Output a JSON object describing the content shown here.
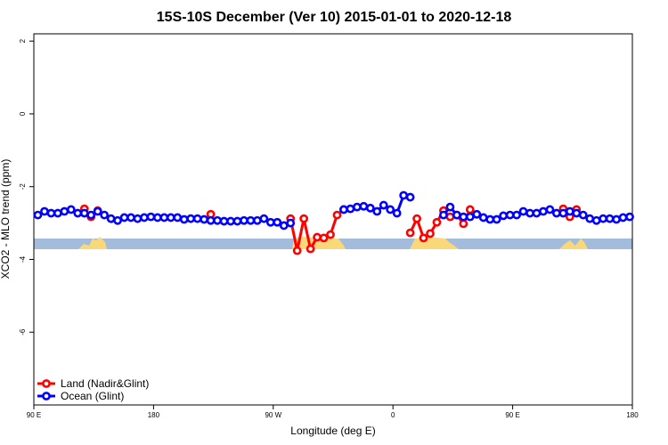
{
  "chart_data": {
    "type": "line",
    "title": "15S-10S December (Ver 10)   2015-01-01 to 2020-12-18",
    "x_label": "Longitude (deg E)",
    "y_label": "XCO2 - MLO trend (ppm)",
    "x": [
      93,
      98,
      103,
      108,
      113,
      118,
      123,
      128,
      133,
      138,
      143,
      148,
      153,
      158,
      163,
      168,
      173,
      178,
      183,
      188,
      193,
      198,
      203,
      208,
      213,
      218,
      223,
      228,
      233,
      238,
      243,
      248,
      253,
      258,
      263,
      268,
      273,
      278,
      283,
      288,
      293,
      298,
      303,
      308,
      313,
      318,
      323,
      328,
      333,
      338,
      343,
      348,
      353,
      358,
      363,
      368,
      373,
      378,
      383,
      388,
      393,
      398,
      403,
      408,
      413,
      418,
      423,
      428,
      433,
      438,
      443,
      448,
      453,
      458,
      463,
      468,
      473,
      478,
      483,
      488,
      493,
      498,
      503,
      508,
      513,
      518,
      523,
      528,
      533,
      538
    ],
    "series": [
      {
        "name": "Land (Nadir&Glint)",
        "color": "#ff0000",
        "values": [
          null,
          null,
          null,
          null,
          null,
          null,
          null,
          -2.61,
          -2.83,
          -2.66,
          null,
          null,
          null,
          null,
          null,
          null,
          null,
          null,
          null,
          null,
          null,
          null,
          null,
          null,
          null,
          null,
          -2.76,
          null,
          null,
          null,
          null,
          null,
          null,
          null,
          null,
          null,
          null,
          null,
          -2.88,
          -3.76,
          -2.88,
          -3.71,
          -3.39,
          -3.41,
          -3.32,
          -2.78,
          -2.63,
          null,
          null,
          null,
          null,
          null,
          null,
          null,
          null,
          null,
          -3.27,
          -2.88,
          -3.41,
          -3.29,
          -2.98,
          -2.66,
          -2.83,
          -2.78,
          -3.02,
          -2.63,
          null,
          null,
          null,
          null,
          null,
          null,
          null,
          null,
          null,
          null,
          null,
          null,
          null,
          -2.61,
          -2.83,
          -2.63,
          null,
          null,
          null,
          null,
          null,
          null,
          null,
          null
        ]
      },
      {
        "name": "Ocean (Glint)",
        "color": "#0000ff",
        "values": [
          -2.78,
          -2.68,
          -2.73,
          -2.73,
          -2.68,
          -2.63,
          -2.73,
          -2.73,
          -2.78,
          -2.68,
          -2.78,
          -2.88,
          -2.93,
          -2.85,
          -2.85,
          -2.88,
          -2.85,
          -2.83,
          -2.85,
          -2.85,
          -2.85,
          -2.85,
          -2.9,
          -2.88,
          -2.88,
          -2.9,
          -2.93,
          -2.93,
          -2.95,
          -2.95,
          -2.95,
          -2.93,
          -2.93,
          -2.93,
          -2.88,
          -2.98,
          -2.98,
          -3.07,
          -3.0,
          null,
          null,
          null,
          null,
          null,
          null,
          null,
          -2.63,
          -2.61,
          -2.56,
          -2.54,
          -2.59,
          -2.68,
          -2.51,
          -2.63,
          -2.73,
          -2.24,
          -2.29,
          null,
          null,
          null,
          null,
          -2.78,
          -2.56,
          -2.78,
          -2.83,
          -2.83,
          -2.76,
          -2.85,
          -2.9,
          -2.9,
          -2.8,
          -2.78,
          -2.78,
          -2.68,
          -2.73,
          -2.73,
          -2.68,
          -2.63,
          -2.73,
          -2.73,
          -2.68,
          -2.73,
          -2.78,
          -2.88,
          -2.93,
          -2.88,
          -2.88,
          -2.9,
          -2.85,
          -2.83
        ]
      }
    ],
    "xlim": [
      90,
      540
    ],
    "xticks": [
      {
        "value": 90,
        "label": "90 E"
      },
      {
        "value": 180,
        "label": "180"
      },
      {
        "value": 270,
        "label": "90 W"
      },
      {
        "value": 360,
        "label": "0"
      },
      {
        "value": 450,
        "label": "90 E"
      },
      {
        "value": 540,
        "label": "180"
      }
    ],
    "ylim": [
      -8,
      2.2
    ],
    "yticks": [
      -6,
      -4,
      -2,
      0,
      2
    ],
    "legend": "bottom-left"
  }
}
